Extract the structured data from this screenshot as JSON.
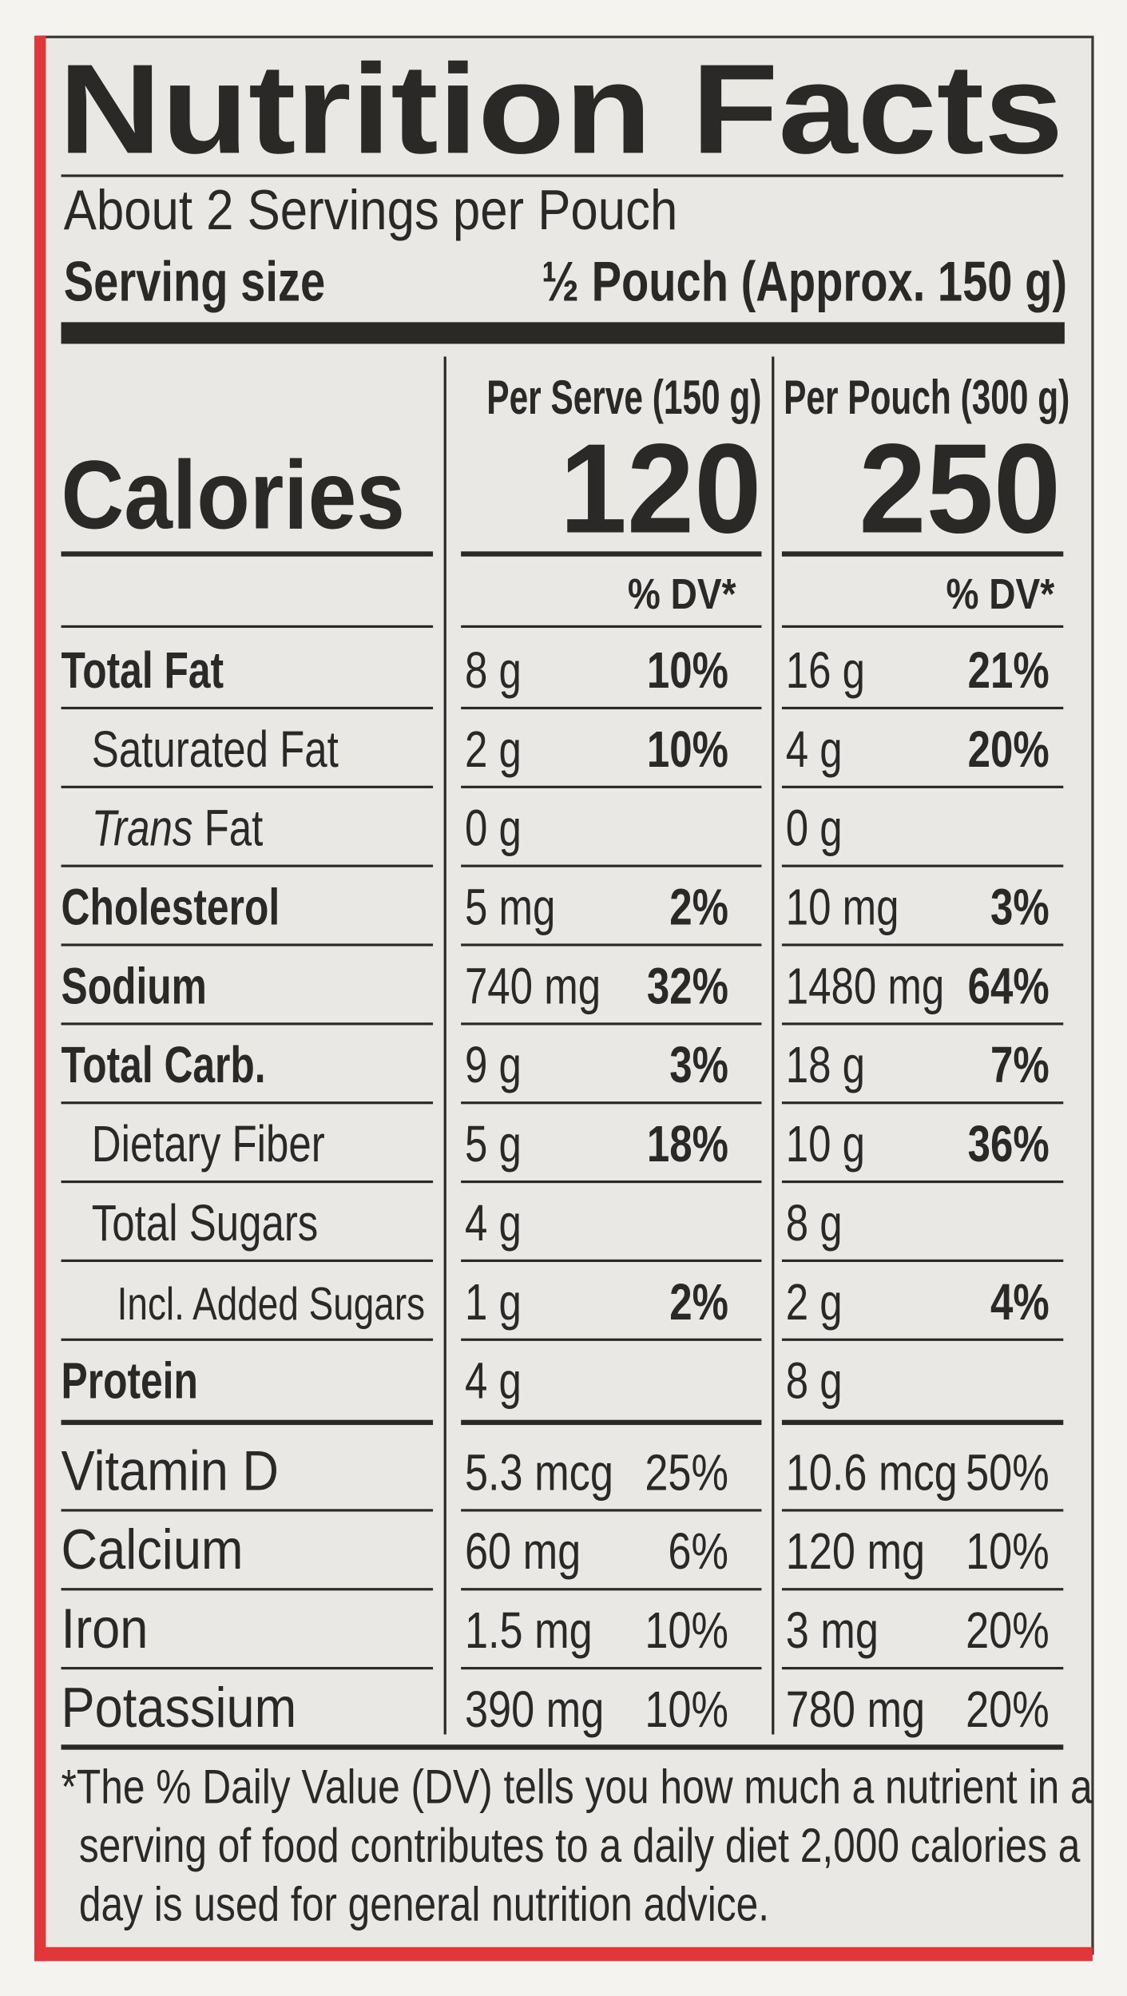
{
  "header": {
    "title": "Nutrition Facts",
    "servings": "About 2 Servings per Pouch",
    "serving_size_label": "Serving size",
    "serving_size_value": "½ Pouch (Approx. 150 g)"
  },
  "calories_label": "Calories",
  "columns": [
    {
      "heading": "Per Serve (150 g)",
      "calories": "120",
      "dv_heading": "% DV*"
    },
    {
      "heading": "Per Pouch (300 g)",
      "calories": "250",
      "dv_heading": "% DV*"
    }
  ],
  "rows": [
    {
      "name": "Total Fat",
      "level": 0,
      "bold": true,
      "values": [
        [
          "8 g",
          "10%"
        ],
        [
          "16 g",
          "21%"
        ]
      ]
    },
    {
      "name": "Saturated Fat",
      "level": 1,
      "bold": false,
      "values": [
        [
          "2 g",
          "10%"
        ],
        [
          "4 g",
          "20%"
        ]
      ]
    },
    {
      "name_italic": "Trans",
      "name": "Fat",
      "level": 1,
      "bold": false,
      "values": [
        [
          "0 g",
          null
        ],
        [
          "0 g",
          null
        ]
      ]
    },
    {
      "name": "Cholesterol",
      "level": 0,
      "bold": true,
      "values": [
        [
          "5 mg",
          "2%"
        ],
        [
          "10 mg",
          "3%"
        ]
      ]
    },
    {
      "name": "Sodium",
      "level": 0,
      "bold": true,
      "values": [
        [
          "740 mg",
          "32%"
        ],
        [
          "1480 mg",
          "64%"
        ]
      ]
    },
    {
      "name": "Total Carb.",
      "level": 0,
      "bold": true,
      "values": [
        [
          "9 g",
          "3%"
        ],
        [
          "18 g",
          "7%"
        ]
      ]
    },
    {
      "name": "Dietary Fiber",
      "level": 1,
      "bold": false,
      "values": [
        [
          "5 g",
          "18%"
        ],
        [
          "10 g",
          "36%"
        ]
      ]
    },
    {
      "name": "Total Sugars",
      "level": 1,
      "bold": false,
      "values": [
        [
          "4 g",
          null
        ],
        [
          "8 g",
          null
        ]
      ]
    },
    {
      "name": "Incl. Added Sugars",
      "level": 2,
      "bold": false,
      "values": [
        [
          "1 g",
          "2%"
        ],
        [
          "2 g",
          "4%"
        ]
      ]
    },
    {
      "name": "Protein",
      "level": 0,
      "bold": true,
      "values": [
        [
          "4 g",
          null
        ],
        [
          "8 g",
          null
        ]
      ]
    }
  ],
  "vitamins": [
    {
      "name": "Vitamin D",
      "values": [
        [
          "5.3 mcg",
          "25%"
        ],
        [
          "10.6 mcg",
          "50%"
        ]
      ]
    },
    {
      "name": "Calcium",
      "values": [
        [
          "60 mg",
          "6%"
        ],
        [
          "120 mg",
          "10%"
        ]
      ]
    },
    {
      "name": "Iron",
      "values": [
        [
          "1.5 mg",
          "10%"
        ],
        [
          "3 mg",
          "20%"
        ]
      ]
    },
    {
      "name": "Potassium",
      "values": [
        [
          "390 mg",
          "10%"
        ],
        [
          "780 mg",
          "20%"
        ]
      ]
    }
  ],
  "footnote": [
    "*The % Daily Value (DV) tells you how much a nutrient in a",
    "serving of food contributes to a daily diet 2,000 calories a",
    "day is used for general nutrition advice."
  ]
}
